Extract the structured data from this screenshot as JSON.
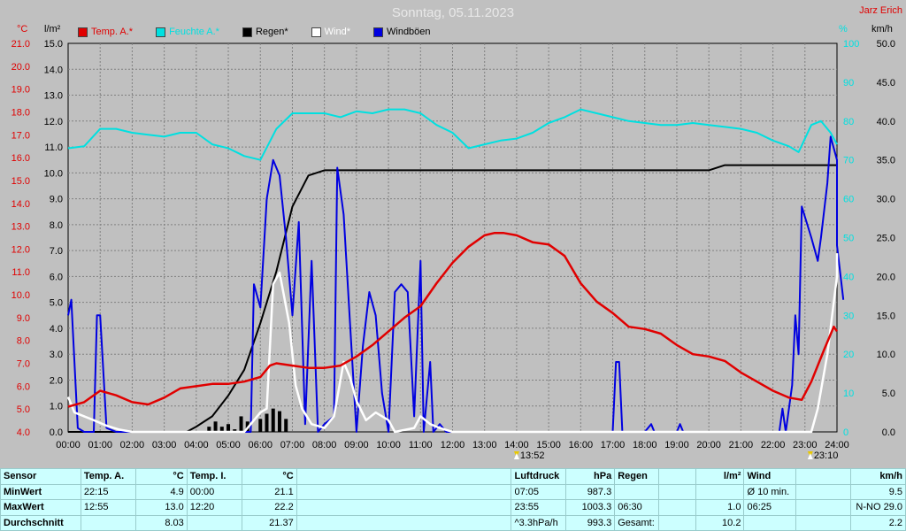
{
  "title": "Sonntag, 05.11.2023",
  "author": "Jarz Erich",
  "units": {
    "temp": "°C",
    "rain": "l/m²",
    "hum": "%",
    "wind": "km/h"
  },
  "legend": [
    {
      "label": "Temp. A.*",
      "color": "#e00000"
    },
    {
      "label": "Feuchte A.*",
      "color": "#00e0e0"
    },
    {
      "label": "Regen*",
      "color": "#000000"
    },
    {
      "label": "Wind*",
      "color": "#ffffff"
    },
    {
      "label": "Windböen",
      "color": "#0000e0"
    }
  ],
  "markers": [
    {
      "time": "13:52",
      "pos": "14:00"
    },
    {
      "time": "23:10",
      "pos": "23:10"
    }
  ],
  "chart_data": {
    "type": "line",
    "title": "Sonntag, 05.11.2023",
    "x_ticks": [
      "00:00",
      "01:00",
      "02:00",
      "03:00",
      "04:00",
      "05:00",
      "06:00",
      "07:00",
      "08:00",
      "09:00",
      "10:00",
      "11:00",
      "12:00",
      "13:00",
      "14:00",
      "15:00",
      "16:00",
      "17:00",
      "18:00",
      "19:00",
      "20:00",
      "21:00",
      "22:00",
      "23:00",
      "24:00"
    ],
    "axes": {
      "temp": {
        "label": "°C",
        "min": 4.0,
        "max": 21.0,
        "ticks": [
          "4.0",
          "5.0",
          "6.0",
          "7.0",
          "8.0",
          "9.0",
          "10.0",
          "11.0",
          "12.0",
          "13.0",
          "14.0",
          "15.0",
          "16.0",
          "17.0",
          "18.0",
          "19.0",
          "20.0",
          "21.0"
        ]
      },
      "rain": {
        "label": "l/m²",
        "min": 0.0,
        "max": 15.0,
        "ticks": [
          "0.0",
          "1.0",
          "2.0",
          "3.0",
          "4.0",
          "5.0",
          "6.0",
          "7.0",
          "8.0",
          "9.0",
          "10.0",
          "11.0",
          "12.0",
          "13.0",
          "14.0",
          "15.0"
        ]
      },
      "hum": {
        "label": "%",
        "min": 0,
        "max": 100,
        "ticks": [
          "0",
          "10",
          "20",
          "30",
          "40",
          "50",
          "60",
          "70",
          "80",
          "90",
          "100"
        ]
      },
      "wind": {
        "label": "km/h",
        "min": 0.0,
        "max": 50.0,
        "ticks": [
          "0.0",
          "5.0",
          "10.0",
          "15.0",
          "20.0",
          "25.0",
          "30.0",
          "35.0",
          "40.0",
          "45.0",
          "50.0"
        ]
      }
    },
    "series": [
      {
        "name": "Temp. A.*",
        "axis": "temp",
        "color": "#e00000",
        "points": [
          [
            0,
            5.1
          ],
          [
            0.5,
            5.3
          ],
          [
            1,
            5.8
          ],
          [
            1.5,
            5.6
          ],
          [
            2,
            5.3
          ],
          [
            2.5,
            5.2
          ],
          [
            3,
            5.5
          ],
          [
            3.5,
            5.9
          ],
          [
            4,
            6.0
          ],
          [
            4.5,
            6.1
          ],
          [
            5,
            6.1
          ],
          [
            5.5,
            6.2
          ],
          [
            6,
            6.4
          ],
          [
            6.3,
            6.9
          ],
          [
            6.5,
            7.0
          ],
          [
            7,
            6.9
          ],
          [
            7.5,
            6.8
          ],
          [
            8,
            6.8
          ],
          [
            8.5,
            6.9
          ],
          [
            9,
            7.3
          ],
          [
            9.5,
            7.8
          ],
          [
            10,
            8.4
          ],
          [
            10.5,
            9.0
          ],
          [
            11,
            9.5
          ],
          [
            11.5,
            10.5
          ],
          [
            12,
            11.4
          ],
          [
            12.5,
            12.1
          ],
          [
            13,
            12.6
          ],
          [
            13.3,
            12.7
          ],
          [
            13.6,
            12.7
          ],
          [
            14,
            12.6
          ],
          [
            14.5,
            12.3
          ],
          [
            15,
            12.2
          ],
          [
            15.5,
            11.7
          ],
          [
            16,
            10.5
          ],
          [
            16.5,
            9.7
          ],
          [
            17,
            9.2
          ],
          [
            17.5,
            8.6
          ],
          [
            18,
            8.5
          ],
          [
            18.5,
            8.3
          ],
          [
            19,
            7.8
          ],
          [
            19.5,
            7.4
          ],
          [
            20,
            7.3
          ],
          [
            20.5,
            7.1
          ],
          [
            21,
            6.6
          ],
          [
            21.5,
            6.2
          ],
          [
            22,
            5.8
          ],
          [
            22.5,
            5.5
          ],
          [
            22.9,
            5.4
          ],
          [
            23.2,
            6.2
          ],
          [
            23.6,
            7.6
          ],
          [
            23.9,
            8.6
          ],
          [
            24,
            8.4
          ]
        ]
      },
      {
        "name": "Feuchte A.*",
        "axis": "hum",
        "color": "#00e0e0",
        "points": [
          [
            0,
            73
          ],
          [
            0.5,
            73.5
          ],
          [
            1,
            78
          ],
          [
            1.5,
            78
          ],
          [
            2,
            77
          ],
          [
            2.5,
            76.5
          ],
          [
            3,
            76
          ],
          [
            3.5,
            77
          ],
          [
            4,
            77
          ],
          [
            4.5,
            74
          ],
          [
            5,
            73
          ],
          [
            5.5,
            71
          ],
          [
            6,
            70
          ],
          [
            6.5,
            78
          ],
          [
            7,
            82
          ],
          [
            7.5,
            82
          ],
          [
            8,
            82
          ],
          [
            8.5,
            81
          ],
          [
            9,
            82.5
          ],
          [
            9.5,
            82
          ],
          [
            10,
            83
          ],
          [
            10.5,
            83
          ],
          [
            11,
            82
          ],
          [
            11.5,
            79
          ],
          [
            12,
            77
          ],
          [
            12.5,
            73
          ],
          [
            13,
            74
          ],
          [
            13.5,
            75
          ],
          [
            14,
            75.5
          ],
          [
            14.5,
            77
          ],
          [
            15,
            79.5
          ],
          [
            15.5,
            81
          ],
          [
            16,
            83
          ],
          [
            16.5,
            82
          ],
          [
            17,
            81
          ],
          [
            17.5,
            80
          ],
          [
            18,
            79.5
          ],
          [
            18.5,
            79
          ],
          [
            19,
            79
          ],
          [
            19.5,
            79.5
          ],
          [
            20,
            79
          ],
          [
            20.5,
            78.5
          ],
          [
            21,
            78
          ],
          [
            21.5,
            77
          ],
          [
            22,
            75
          ],
          [
            22.5,
            73.5
          ],
          [
            22.8,
            72
          ],
          [
            23.2,
            79
          ],
          [
            23.5,
            80
          ],
          [
            23.8,
            77
          ],
          [
            24,
            74
          ]
        ]
      },
      {
        "name": "Regen*",
        "axis": "rain",
        "color": "#000000",
        "points": [
          [
            0,
            0
          ],
          [
            3.7,
            0
          ],
          [
            4,
            0.2
          ],
          [
            4.5,
            0.6
          ],
          [
            5,
            1.4
          ],
          [
            5.5,
            2.4
          ],
          [
            6,
            4.2
          ],
          [
            6.5,
            6.2
          ],
          [
            7,
            8.7
          ],
          [
            7.5,
            9.9
          ],
          [
            8,
            10.1
          ],
          [
            8.5,
            10.1
          ],
          [
            20,
            10.1
          ],
          [
            20.5,
            10.3
          ],
          [
            21,
            10.3
          ],
          [
            24,
            10.3
          ]
        ]
      },
      {
        "name": "Wind*",
        "axis": "wind",
        "color": "#ffffff",
        "points": [
          [
            0,
            4.5
          ],
          [
            0.2,
            2.5
          ],
          [
            0.5,
            2
          ],
          [
            0.8,
            1.5
          ],
          [
            1.2,
            0.8
          ],
          [
            1.6,
            0.3
          ],
          [
            2,
            0
          ],
          [
            5.5,
            0
          ],
          [
            5.7,
            1
          ],
          [
            6,
            2.5
          ],
          [
            6.2,
            3
          ],
          [
            6.4,
            19
          ],
          [
            6.6,
            20.5
          ],
          [
            6.9,
            14
          ],
          [
            7.1,
            6
          ],
          [
            7.3,
            3
          ],
          [
            7.6,
            1
          ],
          [
            8,
            0.5
          ],
          [
            8.3,
            2
          ],
          [
            8.6,
            9
          ],
          [
            8.8,
            7
          ],
          [
            9,
            4
          ],
          [
            9.3,
            1.5
          ],
          [
            9.6,
            2.5
          ],
          [
            10,
            1.5
          ],
          [
            10.2,
            0
          ],
          [
            10.8,
            0.5
          ],
          [
            11,
            2
          ],
          [
            11.3,
            1
          ],
          [
            11.6,
            0.5
          ],
          [
            12,
            0
          ],
          [
            23.2,
            0
          ],
          [
            23.4,
            3
          ],
          [
            23.7,
            10
          ],
          [
            24,
            20
          ],
          [
            24,
            23
          ]
        ]
      },
      {
        "name": "Windböen",
        "axis": "wind",
        "color": "#0000e0",
        "points": [
          [
            0,
            15
          ],
          [
            0.1,
            17
          ],
          [
            0.3,
            0.5
          ],
          [
            0.5,
            0
          ],
          [
            0.8,
            0
          ],
          [
            0.9,
            15
          ],
          [
            1,
            15
          ],
          [
            1.2,
            0.5
          ],
          [
            1.5,
            0
          ],
          [
            5.7,
            0
          ],
          [
            5.8,
            19
          ],
          [
            6,
            16
          ],
          [
            6.2,
            30
          ],
          [
            6.4,
            35
          ],
          [
            6.6,
            33
          ],
          [
            6.8,
            25
          ],
          [
            7,
            15
          ],
          [
            7.2,
            27
          ],
          [
            7.4,
            1
          ],
          [
            7.6,
            22
          ],
          [
            7.8,
            0
          ],
          [
            8,
            1
          ],
          [
            8.3,
            2
          ],
          [
            8.4,
            34
          ],
          [
            8.6,
            28
          ],
          [
            8.8,
            14
          ],
          [
            9,
            0
          ],
          [
            9.2,
            11
          ],
          [
            9.4,
            18
          ],
          [
            9.6,
            15
          ],
          [
            9.8,
            5
          ],
          [
            10,
            0
          ],
          [
            10.2,
            18
          ],
          [
            10.4,
            19
          ],
          [
            10.6,
            18
          ],
          [
            10.8,
            2
          ],
          [
            11,
            22
          ],
          [
            11.1,
            0
          ],
          [
            11.3,
            9
          ],
          [
            11.4,
            0
          ],
          [
            11.6,
            1
          ],
          [
            11.8,
            0
          ],
          [
            17,
            0
          ],
          [
            17.1,
            9
          ],
          [
            17.2,
            9
          ],
          [
            17.3,
            0
          ],
          [
            18,
            0
          ],
          [
            18.2,
            1
          ],
          [
            18.3,
            0
          ],
          [
            19,
            0
          ],
          [
            19.1,
            1
          ],
          [
            19.2,
            0
          ],
          [
            22.2,
            0
          ],
          [
            22.3,
            3
          ],
          [
            22.4,
            0
          ],
          [
            22.6,
            6
          ],
          [
            22.7,
            15
          ],
          [
            22.8,
            10
          ],
          [
            22.9,
            29
          ],
          [
            23.2,
            25
          ],
          [
            23.4,
            22
          ],
          [
            23.5,
            25
          ],
          [
            23.7,
            32
          ],
          [
            23.8,
            38
          ],
          [
            24,
            35
          ],
          [
            24,
            24
          ],
          [
            24.2,
            17
          ]
        ]
      }
    ],
    "rain_bars": [
      [
        4.4,
        0.2
      ],
      [
        4.6,
        0.4
      ],
      [
        4.8,
        0.2
      ],
      [
        5.0,
        0.3
      ],
      [
        5.2,
        0.1
      ],
      [
        5.4,
        0.6
      ],
      [
        5.6,
        0.4
      ],
      [
        6.0,
        0.5
      ],
      [
        6.2,
        0.7
      ],
      [
        6.4,
        0.9
      ],
      [
        6.6,
        0.8
      ],
      [
        6.8,
        0.5
      ]
    ]
  },
  "stats": {
    "header": [
      "Sensor",
      "Temp. A.",
      "°C",
      "Temp. I.",
      "°C",
      "Luftdruck",
      "hPa",
      "Regen",
      "l/m²",
      "Wind",
      "km/h"
    ],
    "rows": [
      [
        "MinWert",
        "22:15",
        "4.9",
        "00:00",
        "21.1",
        "07:05",
        "987.3",
        "",
        "",
        "Ø 10 min.",
        "9.5"
      ],
      [
        "MaxWert",
        "12:55",
        "13.0",
        "12:20",
        "22.2",
        "23:55",
        "1003.3",
        "06:30",
        "1.0",
        "06:25",
        "N-NO 29.0"
      ],
      [
        "Durchschnitt",
        "",
        "8.03",
        "",
        "21.37",
        "^3.3hPa/h",
        "993.3",
        "Gesamt:",
        "10.2",
        "",
        "2.2"
      ]
    ]
  }
}
